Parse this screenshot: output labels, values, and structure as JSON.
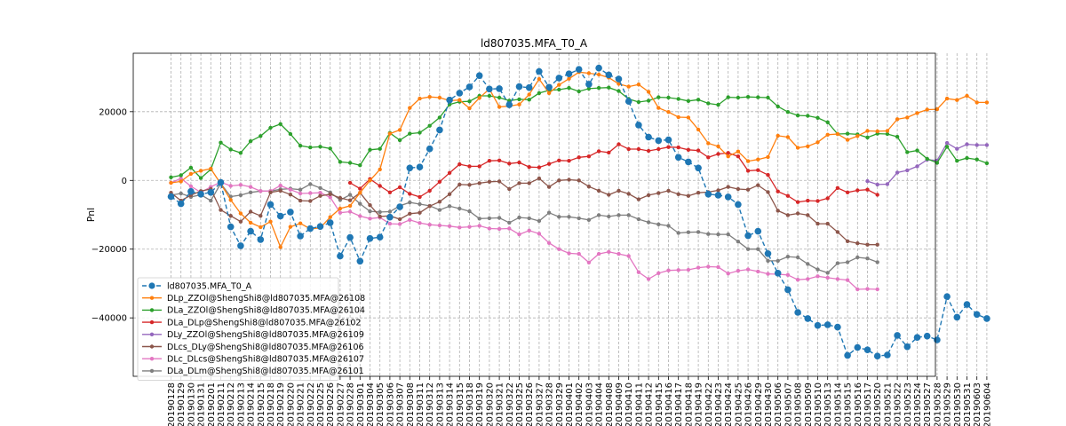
{
  "chart_data": {
    "type": "line",
    "title": "ld807035.MFA_T0_A",
    "xlabel": "",
    "ylabel": "Pnl",
    "ylim": [
      -57000,
      37000
    ],
    "yticks": [
      20000,
      0,
      -20000,
      -40000
    ],
    "ytick_labels": [
      "20000",
      "0",
      "−20000",
      "−40000"
    ],
    "grid": true,
    "legend_position": "lower-left",
    "categories": [
      "20190128",
      "20190129",
      "20190130",
      "20190131",
      "20190201",
      "20190211",
      "20190212",
      "20190213",
      "20190214",
      "20190215",
      "20190218",
      "20190219",
      "20190220",
      "20190221",
      "20190222",
      "20190225",
      "20190226",
      "20190227",
      "20190228",
      "20190301",
      "20190304",
      "20190305",
      "20190306",
      "20190307",
      "20190308",
      "20190311",
      "20190312",
      "20190313",
      "20190314",
      "20190315",
      "20190318",
      "20190319",
      "20190320",
      "20190321",
      "20190322",
      "20190325",
      "20190326",
      "20190327",
      "20190328",
      "20190329",
      "20190401",
      "20190402",
      "20190403",
      "20190404",
      "20190408",
      "20190409",
      "20190410",
      "20190411",
      "20190412",
      "20190415",
      "20190416",
      "20190417",
      "20190418",
      "20190419",
      "20190422",
      "20190423",
      "20190424",
      "20190425",
      "20190426",
      "20190429",
      "20190430",
      "20190506",
      "20190507",
      "20190508",
      "20190509",
      "20190510",
      "20190513",
      "20190514",
      "20190515",
      "20190516",
      "20190517",
      "20190520",
      "20190521",
      "20190522",
      "20190523",
      "20190524",
      "20190527",
      "20190528",
      "20190529",
      "20190530",
      "20190531",
      "20190603",
      "20190604"
    ],
    "series": [
      {
        "name": "ld807035.MFA_T0_A",
        "color": "#1f77b4",
        "style": "dashed-dot",
        "values": [
          -4700,
          -6800,
          -3200,
          -4000,
          -3500,
          -600,
          -13500,
          -19000,
          -14800,
          -17200,
          -7000,
          -10400,
          -9200,
          -16200,
          -14000,
          -13400,
          -12300,
          -22000,
          -16600,
          -23500,
          -16900,
          -16500,
          -10700,
          -7700,
          3600,
          3900,
          9200,
          14700,
          23400,
          25400,
          27200,
          30500,
          26600,
          26700,
          22000,
          27300,
          27000,
          31700,
          27100,
          29800,
          31000,
          32300,
          28000,
          32700,
          30700,
          29500,
          23000,
          16100,
          12600,
          11600,
          11800,
          6700,
          5400,
          3600,
          -4000,
          -4300,
          -4800,
          -7000,
          -16100,
          -14800,
          -21300,
          -27000,
          -31800,
          -38400,
          -40200,
          -42200,
          -42000,
          -42700,
          -50900,
          -48600,
          -49300,
          -51100,
          -50800,
          -45100,
          -48400,
          -45700,
          -45300,
          -46400,
          -33800,
          -39800,
          -36100,
          -39000,
          -40200
        ]
      },
      {
        "name": "DLp_ZZOl@ShengShi8@ld807035.MFA@26108",
        "color": "#ff7f0e",
        "style": "solid",
        "values": [
          -700,
          -300,
          1900,
          2800,
          3400,
          -1000,
          -5700,
          -9600,
          -12300,
          -13600,
          -12000,
          -19400,
          -13500,
          -12500,
          -14100,
          -13800,
          -10700,
          -8200,
          -7400,
          -3600,
          0,
          3200,
          13600,
          14700,
          21100,
          23800,
          24300,
          24100,
          23200,
          23400,
          21000,
          24000,
          26600,
          21400,
          21600,
          22100,
          25000,
          29500,
          25400,
          27800,
          29600,
          31500,
          31200,
          30800,
          29900,
          28100,
          27300,
          27900,
          25800,
          21100,
          19900,
          18400,
          18300,
          14800,
          10800,
          9900,
          7000,
          8400,
          5600,
          6100,
          6800,
          13000,
          12600,
          9500,
          9900,
          11100,
          13300,
          13500,
          11800,
          12900,
          14400,
          14300,
          14400,
          17800,
          18300,
          19600,
          20600,
          20700,
          23800,
          23400,
          24600,
          22700,
          22700
        ]
      },
      {
        "name": "DLa_ZZOl@ShengShi8@ld807035.MFA@26104",
        "color": "#2ca02c",
        "style": "solid",
        "values": [
          900,
          1500,
          3700,
          700,
          3200,
          11000,
          9000,
          8000,
          11400,
          12900,
          15300,
          16400,
          13500,
          10100,
          9600,
          9800,
          9300,
          5400,
          5100,
          4400,
          8900,
          9200,
          13800,
          11700,
          13600,
          13900,
          15900,
          18300,
          22100,
          22900,
          23000,
          24600,
          24600,
          24100,
          23200,
          23600,
          23500,
          25400,
          26200,
          26400,
          26900,
          25900,
          26700,
          26900,
          27000,
          26000,
          23700,
          22800,
          23200,
          24200,
          24100,
          23700,
          23100,
          23500,
          22400,
          22000,
          24200,
          24100,
          24300,
          24200,
          24100,
          21500,
          19900,
          18900,
          18800,
          18200,
          16900,
          13500,
          13600,
          13400,
          12500,
          13600,
          13500,
          12700,
          8200,
          8700,
          6300,
          5100,
          9800,
          5700,
          6500,
          6100,
          5000
        ]
      },
      {
        "name": "DLa_DLp@ShengShi8@ld807035.MFA@26102",
        "color": "#d62728",
        "style": "solid",
        "values": [
          null,
          null,
          null,
          null,
          null,
          null,
          null,
          null,
          null,
          null,
          null,
          null,
          null,
          null,
          null,
          null,
          null,
          null,
          -700,
          -2400,
          400,
          -1600,
          -3500,
          -2000,
          -3900,
          -4800,
          -3000,
          -400,
          2200,
          4700,
          4100,
          4100,
          5700,
          5800,
          4900,
          5200,
          3900,
          3800,
          4800,
          5800,
          5700,
          6700,
          7000,
          8500,
          8100,
          10500,
          9100,
          9100,
          8600,
          9100,
          9700,
          9600,
          8900,
          8700,
          6700,
          7700,
          8000,
          7000,
          2800,
          3000,
          1600,
          -3200,
          -4500,
          -6300,
          -5900,
          -6000,
          -5200,
          -2200,
          -3500,
          -2900,
          -2700,
          -4200,
          null,
          null,
          null,
          null,
          null,
          null,
          null,
          null,
          null,
          null,
          null
        ]
      },
      {
        "name": "DLy_ZZOl@ShengShi8@ld807035.MFA@26109",
        "color": "#9467bd",
        "style": "solid",
        "values": [
          null,
          null,
          null,
          null,
          null,
          null,
          null,
          null,
          null,
          null,
          null,
          null,
          null,
          null,
          null,
          null,
          null,
          null,
          null,
          null,
          null,
          null,
          null,
          null,
          null,
          null,
          null,
          null,
          null,
          null,
          null,
          null,
          null,
          null,
          null,
          null,
          null,
          null,
          null,
          null,
          null,
          null,
          null,
          null,
          null,
          null,
          null,
          null,
          null,
          null,
          null,
          null,
          null,
          null,
          null,
          null,
          null,
          null,
          null,
          null,
          null,
          null,
          null,
          null,
          null,
          null,
          null,
          null,
          null,
          null,
          -200,
          -1200,
          -1100,
          2300,
          2900,
          4100,
          6000,
          5800,
          10900,
          9200,
          10500,
          10300,
          10300
        ]
      },
      {
        "name": "DLcs_DLy@ShengShi8@ld807035.MFA@26106",
        "color": "#8c564b",
        "style": "solid",
        "values": [
          -3600,
          -5900,
          -4300,
          -3100,
          -2500,
          -8600,
          -10300,
          -12000,
          -9100,
          -10300,
          -3500,
          -3000,
          -4100,
          -5900,
          -6000,
          -4500,
          -4000,
          -5100,
          -5800,
          -3600,
          -7200,
          -10500,
          -10300,
          -11300,
          -9700,
          -9400,
          -7500,
          -6200,
          -4000,
          -1200,
          -1300,
          -800,
          -400,
          -300,
          -2500,
          -800,
          -800,
          600,
          -1900,
          0,
          200,
          0,
          -1800,
          -3000,
          -4200,
          -3000,
          -3900,
          -5500,
          -4300,
          -3700,
          -3000,
          -4000,
          -4500,
          -3600,
          -3400,
          -2900,
          -1900,
          -2500,
          -2700,
          -1400,
          -3400,
          -8800,
          -10100,
          -9600,
          -10100,
          -12600,
          -12600,
          -15000,
          -17700,
          -18300,
          -18700,
          -18700,
          null,
          null,
          null,
          null,
          null,
          null,
          null,
          null,
          null,
          null,
          null
        ]
      },
      {
        "name": "DLc_DLcs@ShengShi8@ld807035.MFA@26107",
        "color": "#e377c2",
        "style": "solid",
        "values": [
          -700,
          600,
          -1700,
          -3500,
          -1900,
          -500,
          -1600,
          -1300,
          -1900,
          -3100,
          -3100,
          -1500,
          -2700,
          -3800,
          -3700,
          -3600,
          -4900,
          -9400,
          -9100,
          -10400,
          -11100,
          -10800,
          -12600,
          -12700,
          -11500,
          -12400,
          -12900,
          -13100,
          -13300,
          -13700,
          -13500,
          -13200,
          -14000,
          -14100,
          -14000,
          -15700,
          -14600,
          -15500,
          -18200,
          -20000,
          -21200,
          -21400,
          -23900,
          -21400,
          -20800,
          -21400,
          -22000,
          -26700,
          -28700,
          -27000,
          -26200,
          -26100,
          -26000,
          -25400,
          -25100,
          -25200,
          -27100,
          -26300,
          -25900,
          -26500,
          -27200,
          -27300,
          -27500,
          -28900,
          -28700,
          -27900,
          -28300,
          -28700,
          -29000,
          -31700,
          -31600,
          -31700,
          null,
          null,
          null,
          null,
          null,
          null,
          null,
          null,
          null,
          null,
          null
        ]
      },
      {
        "name": "DLa_DLm@ShengShi8@ld807035.MFA@26101",
        "color": "#7f7f7f",
        "style": "solid",
        "values": [
          -4300,
          -3800,
          -4800,
          -4200,
          -5900,
          -900,
          -4700,
          -4300,
          -3500,
          -3100,
          -3100,
          -2600,
          -2400,
          -2700,
          -1100,
          -2200,
          -3500,
          -5700,
          -4200,
          -6800,
          -9000,
          -9200,
          -9100,
          -7400,
          -6400,
          -6900,
          -7400,
          -8600,
          -7500,
          -8200,
          -9000,
          -11100,
          -11000,
          -10900,
          -12300,
          -10800,
          -11000,
          -11800,
          -9400,
          -10600,
          -10600,
          -11000,
          -11500,
          -10100,
          -10500,
          -10100,
          -10100,
          -11300,
          -12200,
          -12800,
          -13200,
          -15300,
          -15100,
          -15000,
          -15600,
          -15700,
          -15700,
          -17800,
          -20000,
          -20000,
          -23400,
          -23400,
          -22200,
          -22400,
          -24300,
          -25900,
          -26900,
          -24100,
          -23800,
          -22400,
          -22700,
          -23800,
          null,
          null,
          null,
          null,
          null,
          null,
          null,
          null,
          null,
          null,
          null
        ]
      }
    ]
  }
}
